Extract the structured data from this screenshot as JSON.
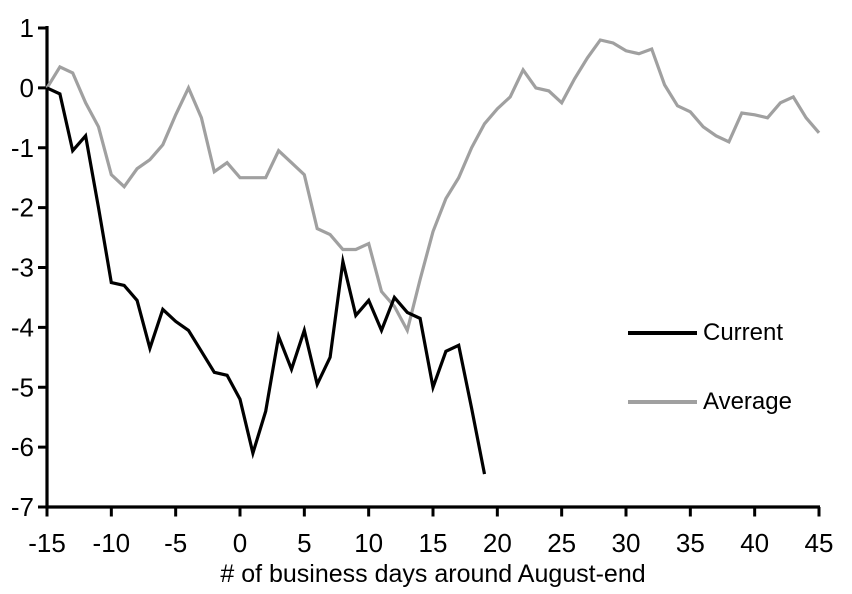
{
  "chart_data": {
    "type": "line",
    "title": "",
    "xlabel": "# of business days around August-end",
    "ylabel": "",
    "xlim": [
      -15,
      45
    ],
    "ylim": [
      -7,
      1
    ],
    "x_ticks": [
      -15,
      -10,
      -5,
      0,
      5,
      10,
      15,
      20,
      25,
      30,
      35,
      40,
      45
    ],
    "y_ticks": [
      1,
      0,
      -1,
      -2,
      -3,
      -4,
      -5,
      -6,
      -7
    ],
    "grid": false,
    "legend_position": "middle-right",
    "axis_color": "#000000",
    "series": [
      {
        "name": "Average",
        "color": "#a0a0a0",
        "x_start": -15,
        "x_step": 1,
        "values": [
          0,
          0.35,
          0.25,
          -0.25,
          -0.65,
          -1.45,
          -1.65,
          -1.35,
          -1.2,
          -0.95,
          -0.45,
          0.0,
          -0.5,
          -1.4,
          -1.25,
          -1.5,
          -1.5,
          -1.5,
          -1.05,
          -1.25,
          -1.45,
          -2.35,
          -2.45,
          -2.7,
          -2.7,
          -2.6,
          -3.4,
          -3.65,
          -4.05,
          -3.2,
          -2.4,
          -1.85,
          -1.5,
          -1.0,
          -0.6,
          -0.35,
          -0.15,
          0.3,
          0.0,
          -0.05,
          -0.25,
          0.15,
          0.5,
          0.8,
          0.75,
          0.62,
          0.57,
          0.65,
          0.05,
          -0.3,
          -0.4,
          -0.65,
          -0.8,
          -0.9,
          -0.42,
          -0.45,
          -0.5,
          -0.25,
          -0.15,
          -0.5,
          -0.75
        ]
      },
      {
        "name": "Current",
        "color": "#000000",
        "x_start": -15,
        "x_step": 1,
        "values": [
          0,
          -0.1,
          -1.05,
          -0.8,
          -2.0,
          -3.25,
          -3.3,
          -3.55,
          -4.35,
          -3.7,
          -3.9,
          -4.05,
          -4.4,
          -4.75,
          -4.8,
          -5.2,
          -6.1,
          -5.4,
          -4.15,
          -4.7,
          -4.05,
          -4.95,
          -4.5,
          -2.9,
          -3.8,
          -3.55,
          -4.05,
          -3.5,
          -3.75,
          -3.85,
          -5.0,
          -4.4,
          -4.3,
          -5.35,
          -6.45
        ]
      }
    ]
  },
  "legend": {
    "current_label": "Current",
    "average_label": "Average"
  },
  "axis": {
    "x_title": "# of business days around August-end"
  }
}
